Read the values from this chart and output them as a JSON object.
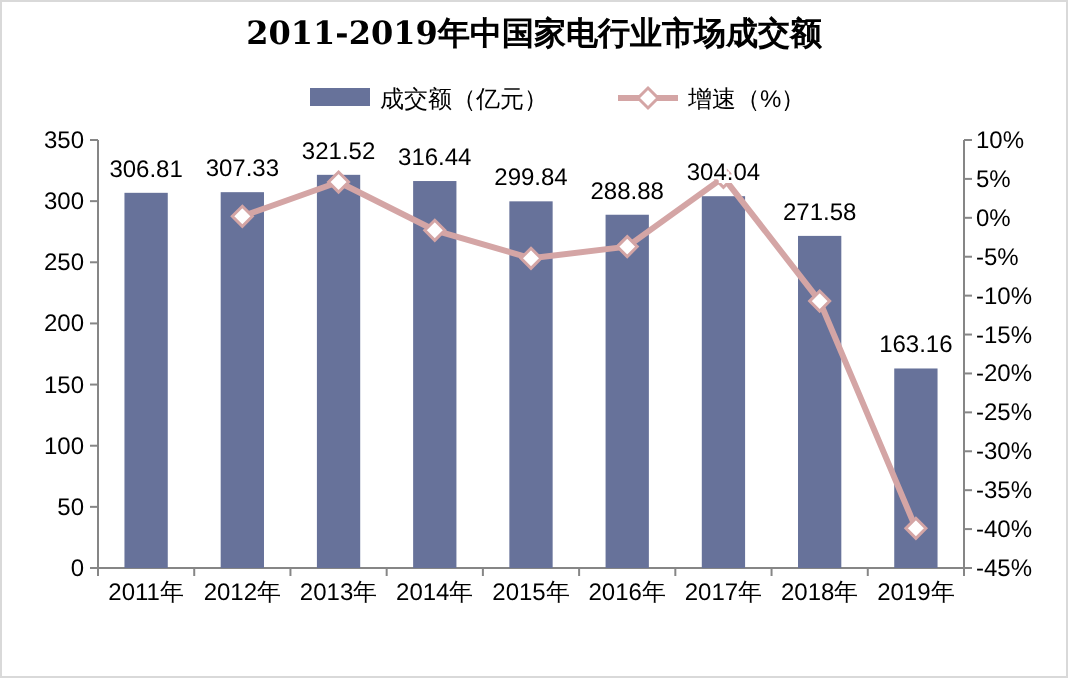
{
  "chart_data": {
    "type": "bar",
    "title": "2011-2019年中国家电行业市场成交额",
    "categories": [
      "2011年",
      "2012年",
      "2013年",
      "2014年",
      "2015年",
      "2016年",
      "2017年",
      "2018年",
      "2019年"
    ],
    "series": [
      {
        "name": "成交额（亿元）",
        "color": "#67729a",
        "values": [
          306.81,
          307.33,
          321.52,
          316.44,
          299.84,
          288.88,
          304.04,
          271.58,
          163.16
        ],
        "value_labels": [
          "306.81",
          "307.33",
          "321.52",
          "316.44",
          "299.84",
          "288.88",
          "304.04",
          "271.58",
          "163.16"
        ]
      },
      {
        "name": "增速（%）",
        "type": "line",
        "axis": "y2",
        "color": "#d4a5a5",
        "marker": "diamond",
        "values": [
          null,
          0.2,
          4.6,
          -1.6,
          -5.2,
          -3.7,
          5.2,
          -10.7,
          -39.9
        ]
      }
    ],
    "ylim": [
      0,
      350
    ],
    "yticks": [
      0,
      50,
      100,
      150,
      200,
      250,
      300,
      350
    ],
    "y2lim": [
      -45,
      10
    ],
    "y2ticks": [
      {
        "value": -45,
        "label": "-45%"
      },
      {
        "value": -40,
        "label": "-40%"
      },
      {
        "value": -35,
        "label": "-35%"
      },
      {
        "value": -30,
        "label": "-30%"
      },
      {
        "value": -25,
        "label": "-25%"
      },
      {
        "value": -20,
        "label": "-20%"
      },
      {
        "value": -15,
        "label": "-15%"
      },
      {
        "value": -10,
        "label": "-10%"
      },
      {
        "value": -5,
        "label": "-5%"
      },
      {
        "value": 0,
        "label": "0%"
      },
      {
        "value": 5,
        "label": "5%"
      },
      {
        "value": 10,
        "label": "10%"
      }
    ],
    "grid": false,
    "legend": "top"
  }
}
